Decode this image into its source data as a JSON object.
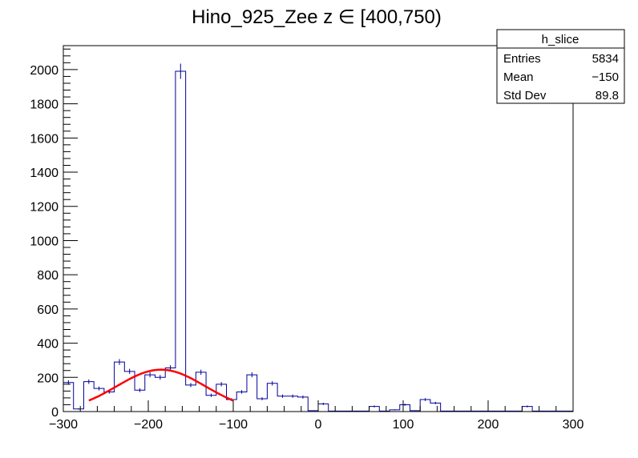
{
  "chart_data": {
    "type": "histogram",
    "title": "Hino_925_Zee z  ∈ [400,750)",
    "xlim": [
      -300,
      300
    ],
    "ylim": [
      0,
      2140
    ],
    "bin_width": 12,
    "x_ticks": [
      -300,
      -200,
      -100,
      0,
      100,
      200,
      300
    ],
    "x_tick_labels": [
      "−300",
      "−200",
      "−100",
      "0",
      "100",
      "200",
      "300"
    ],
    "y_ticks": [
      0,
      200,
      400,
      600,
      800,
      1000,
      1200,
      1400,
      1600,
      1800,
      2000
    ],
    "y_tick_labels": [
      "0",
      "200",
      "400",
      "600",
      "800",
      "1000",
      "1200",
      "1400",
      "1600",
      "1800",
      "2000"
    ],
    "grid": false,
    "histogram_color": "#000099",
    "fit_color": "#ff0000",
    "bins": [
      {
        "x": -300,
        "y": 170
      },
      {
        "x": -288,
        "y": 15
      },
      {
        "x": -276,
        "y": 175
      },
      {
        "x": -264,
        "y": 135
      },
      {
        "x": -252,
        "y": 115
      },
      {
        "x": -240,
        "y": 290
      },
      {
        "x": -228,
        "y": 235
      },
      {
        "x": -216,
        "y": 125
      },
      {
        "x": -204,
        "y": 215
      },
      {
        "x": -192,
        "y": 200
      },
      {
        "x": -180,
        "y": 255
      },
      {
        "x": -168,
        "y": 1990
      },
      {
        "x": -156,
        "y": 155
      },
      {
        "x": -144,
        "y": 230
      },
      {
        "x": -132,
        "y": 95
      },
      {
        "x": -120,
        "y": 160
      },
      {
        "x": -108,
        "y": 70
      },
      {
        "x": -96,
        "y": 115
      },
      {
        "x": -84,
        "y": 215
      },
      {
        "x": -72,
        "y": 75
      },
      {
        "x": -60,
        "y": 165
      },
      {
        "x": -48,
        "y": 90
      },
      {
        "x": -36,
        "y": 90
      },
      {
        "x": -24,
        "y": 85
      },
      {
        "x": -12,
        "y": 5
      },
      {
        "x": 0,
        "y": 45
      },
      {
        "x": 12,
        "y": 3
      },
      {
        "x": 24,
        "y": 3
      },
      {
        "x": 36,
        "y": 3
      },
      {
        "x": 48,
        "y": 3
      },
      {
        "x": 60,
        "y": 30
      },
      {
        "x": 72,
        "y": 3
      },
      {
        "x": 84,
        "y": 10
      },
      {
        "x": 96,
        "y": 40
      },
      {
        "x": 108,
        "y": 5
      },
      {
        "x": 120,
        "y": 70
      },
      {
        "x": 132,
        "y": 50
      },
      {
        "x": 144,
        "y": 3
      },
      {
        "x": 156,
        "y": 3
      },
      {
        "x": 168,
        "y": 3
      },
      {
        "x": 180,
        "y": 3
      },
      {
        "x": 192,
        "y": 3
      },
      {
        "x": 204,
        "y": 3
      },
      {
        "x": 216,
        "y": 3
      },
      {
        "x": 228,
        "y": 3
      },
      {
        "x": 240,
        "y": 30
      },
      {
        "x": 252,
        "y": 3
      },
      {
        "x": 264,
        "y": 3
      },
      {
        "x": 276,
        "y": 3
      },
      {
        "x": 288,
        "y": 3
      }
    ],
    "fit": {
      "type": "gaussian",
      "amplitude": 245,
      "mean": -185,
      "sigma": 52,
      "x_range": [
        -270,
        -100
      ]
    },
    "stats_box": {
      "title": "h_slice",
      "rows": [
        {
          "label": "Entries",
          "value": "5834"
        },
        {
          "label": "Mean",
          "value": "−150"
        },
        {
          "label": "Std Dev",
          "value": "89.8"
        }
      ]
    }
  }
}
